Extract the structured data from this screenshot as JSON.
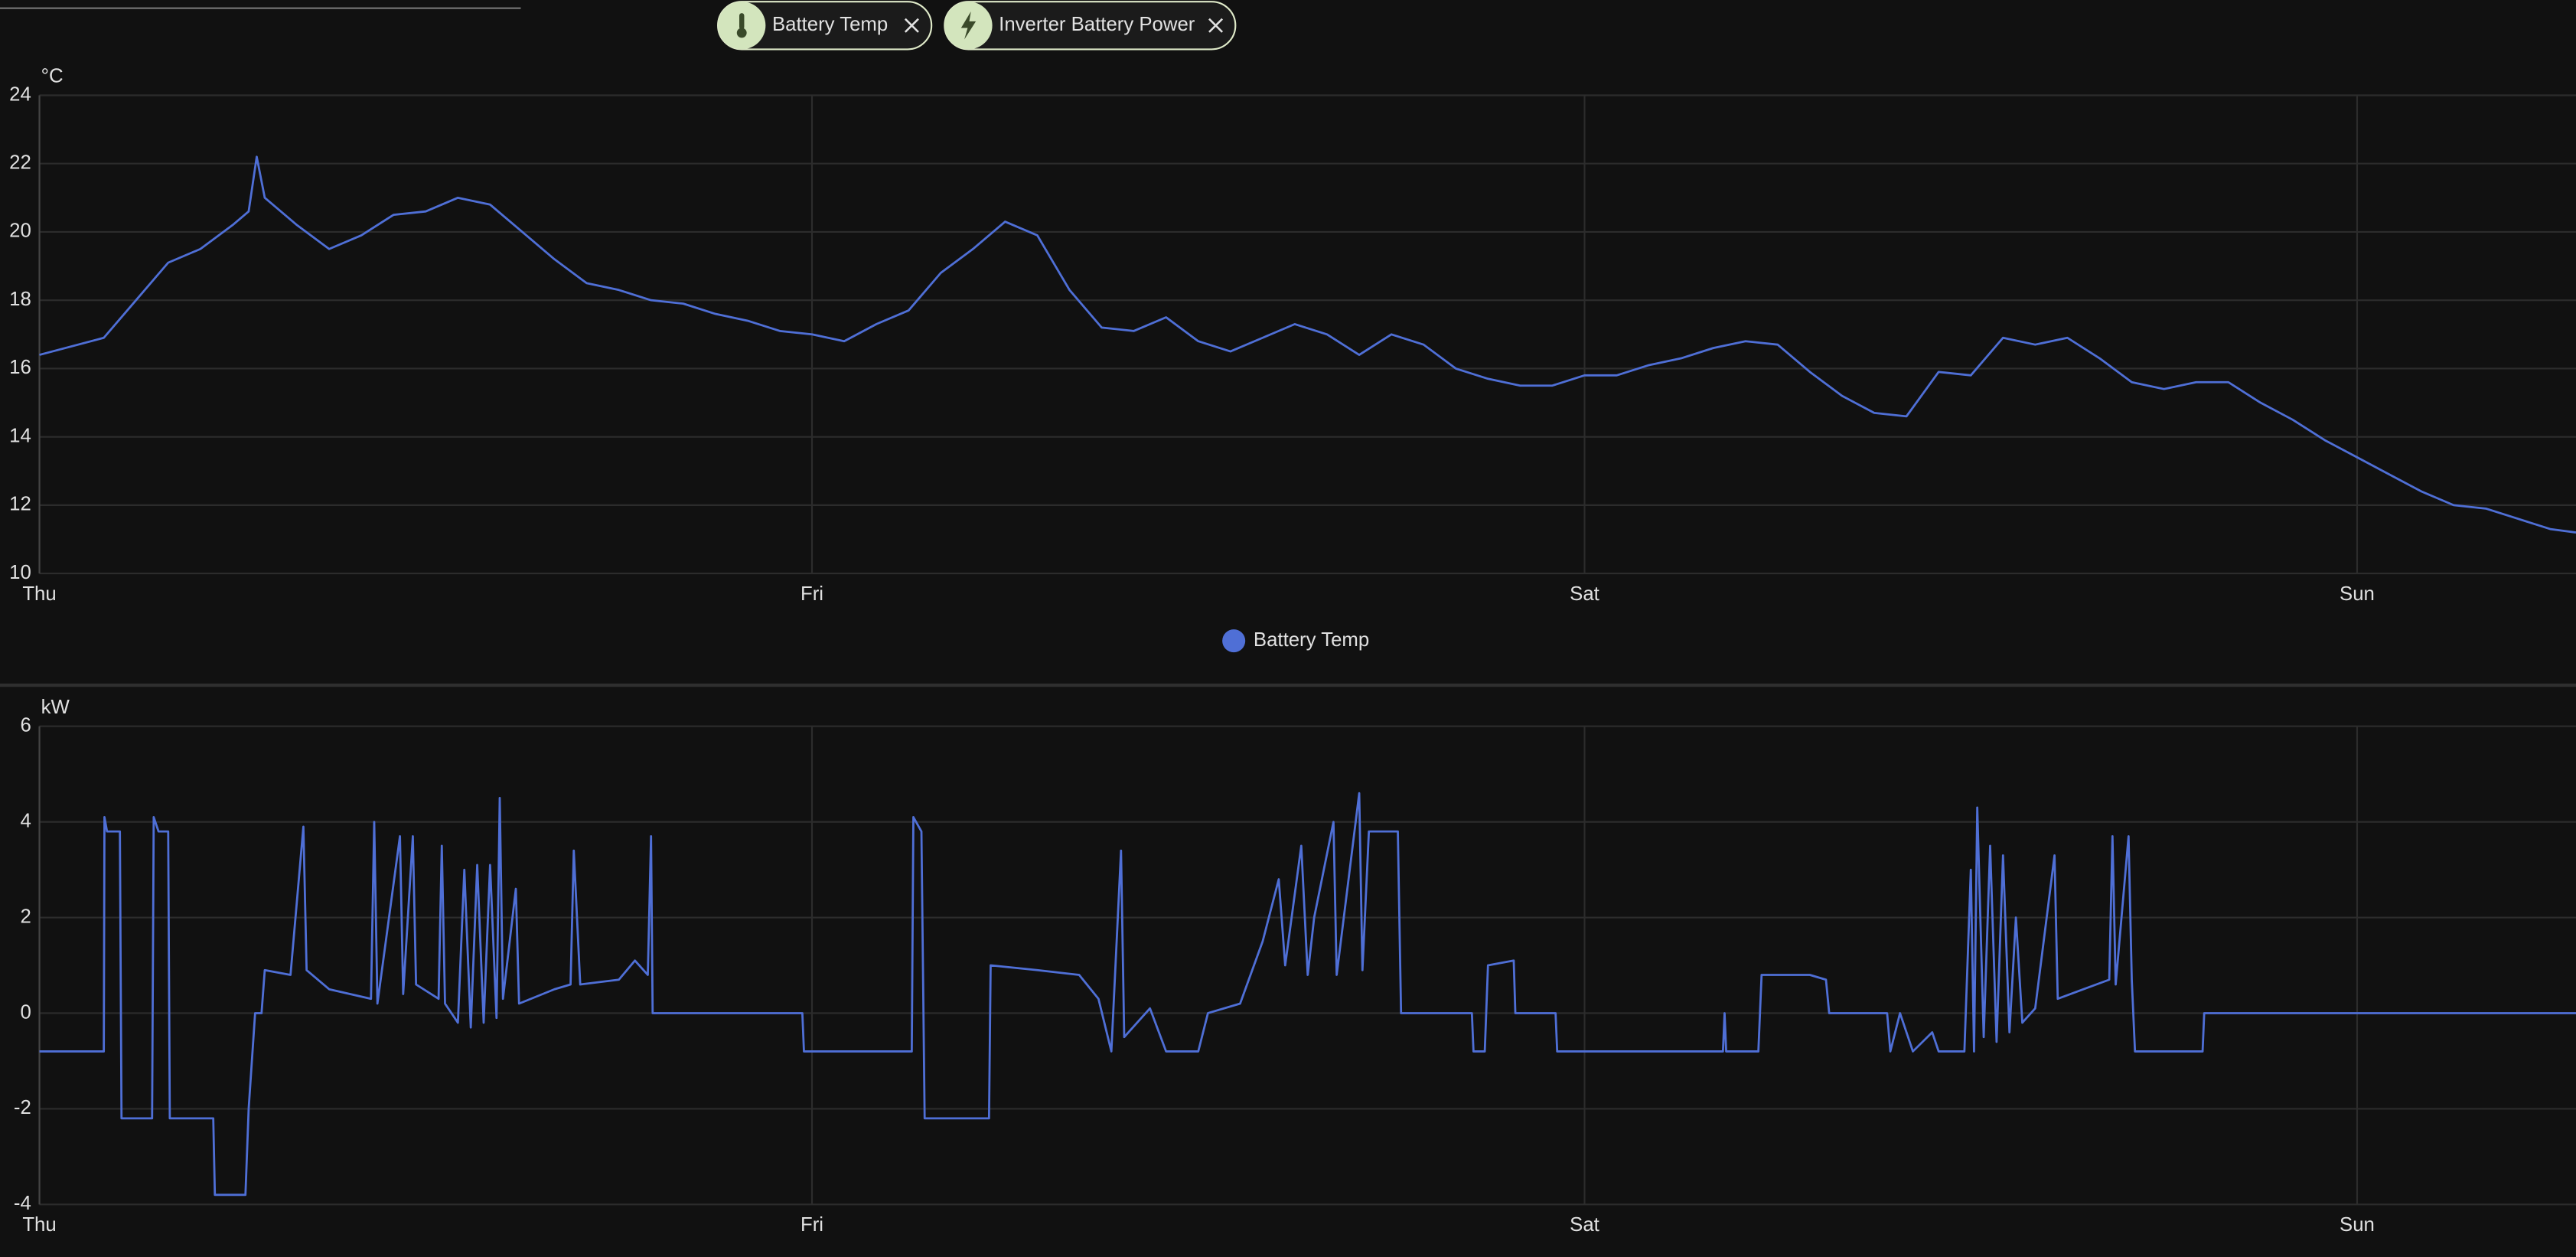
{
  "filter_chips": [
    "Battery Temp",
    "Inverter Battery Power"
  ],
  "chart_data": [
    {
      "type": "line",
      "y_unit": "°C",
      "grid": true,
      "legend": "bottom",
      "xlim": [
        0,
        78.8
      ],
      "xticks": [
        {
          "value": 0,
          "label": "Thu"
        },
        {
          "value": 24,
          "label": "Fri"
        },
        {
          "value": 48,
          "label": "Sat"
        },
        {
          "value": 72,
          "label": "Sun"
        }
      ],
      "ylim": [
        10,
        24
      ],
      "yticks": [
        10,
        12,
        14,
        16,
        18,
        20,
        22,
        24
      ],
      "x": [
        0,
        2,
        3,
        4,
        5,
        6,
        6.5,
        6.75,
        7,
        8,
        9,
        10,
        11,
        12,
        13,
        14,
        15,
        16,
        17,
        18,
        19,
        20,
        21,
        22,
        23,
        24,
        25,
        26,
        27,
        28,
        29,
        30,
        31,
        32,
        33,
        34,
        35,
        36,
        37,
        38,
        39,
        40,
        41,
        42,
        43,
        44,
        45,
        46,
        47,
        48,
        49,
        50,
        51,
        52,
        53,
        54,
        55,
        56,
        57,
        58,
        59,
        60,
        61,
        62,
        63,
        64,
        65,
        66,
        67,
        68,
        69,
        70,
        71,
        72,
        73,
        74,
        75,
        76,
        77,
        78,
        78.8
      ],
      "series": [
        {
          "name": "Battery Temp",
          "color": "#4f6fd6",
          "values": [
            16.4,
            16.9,
            18.0,
            19.1,
            19.5,
            20.2,
            20.6,
            22.2,
            21.0,
            20.2,
            19.5,
            19.9,
            20.5,
            20.6,
            21.0,
            20.8,
            20.0,
            19.2,
            18.5,
            18.3,
            18.0,
            17.9,
            17.6,
            17.4,
            17.1,
            17.0,
            16.8,
            17.3,
            17.7,
            18.8,
            19.5,
            20.3,
            19.9,
            18.3,
            17.2,
            17.1,
            17.5,
            16.8,
            16.5,
            16.9,
            17.3,
            17.0,
            16.4,
            17.0,
            16.7,
            16.0,
            15.7,
            15.5,
            15.5,
            15.8,
            15.8,
            16.1,
            16.3,
            16.6,
            16.8,
            16.7,
            15.9,
            15.2,
            14.7,
            14.6,
            15.9,
            15.8,
            16.9,
            16.7,
            16.9,
            16.3,
            15.6,
            15.4,
            15.6,
            15.6,
            15.0,
            14.5,
            13.9,
            13.4,
            12.9,
            12.4,
            12.0,
            11.9,
            11.6,
            11.3,
            11.2
          ]
        }
      ]
    },
    {
      "type": "line",
      "y_unit": "kW",
      "grid": true,
      "xlim": [
        0,
        78.8
      ],
      "xticks": [
        {
          "value": 0,
          "label": "Thu"
        },
        {
          "value": 24,
          "label": "Fri"
        },
        {
          "value": 48,
          "label": "Sat"
        },
        {
          "value": 72,
          "label": "Sun"
        }
      ],
      "ylim": [
        -4,
        6
      ],
      "yticks": [
        -4,
        -2,
        0,
        2,
        4,
        6
      ],
      "x": [
        0,
        2,
        2.02,
        2.1,
        2.5,
        2.55,
        3.5,
        3.55,
        3.7,
        4.0,
        4.05,
        5.4,
        5.45,
        6.4,
        6.5,
        6.7,
        6.9,
        7.0,
        7.8,
        8.2,
        8.3,
        9,
        10.3,
        10.4,
        10.5,
        11.2,
        11.3,
        11.6,
        11.7,
        12.4,
        12.5,
        12.6,
        13.0,
        13.2,
        13.4,
        13.6,
        13.8,
        14.0,
        14.2,
        14.3,
        14.4,
        14.8,
        14.9,
        16,
        16.5,
        16.6,
        16.8,
        18,
        18.5,
        18.9,
        19.0,
        19.05,
        23.7,
        23.75,
        27.1,
        27.15,
        27.4,
        27.5,
        29.5,
        29.55,
        31,
        32.3,
        32.9,
        33.3,
        33.6,
        33.7,
        34.5,
        35,
        36,
        36.3,
        37.3,
        38,
        38.5,
        38.7,
        39.2,
        39.4,
        39.6,
        40.2,
        40.3,
        41.0,
        41.1,
        41.3,
        42.2,
        42.3,
        44.5,
        44.55,
        44.9,
        45.0,
        45.8,
        45.85,
        47.1,
        47.15,
        52.3,
        52.35,
        52.4,
        53.4,
        53.5,
        55,
        55.5,
        55.6,
        57.4,
        57.5,
        57.8,
        58.2,
        58.8,
        59.0,
        59.8,
        60.0,
        60.1,
        60.2,
        60.4,
        60.6,
        60.8,
        61.0,
        61.2,
        61.4,
        61.6,
        62,
        62.6,
        62.7,
        63.5,
        64.3,
        64.4,
        64.5,
        64.9,
        65.0,
        65.1,
        67.2,
        67.25,
        78.8
      ],
      "series": [
        {
          "color": "#4f6fd6",
          "values": [
            -0.8,
            -0.8,
            4.1,
            3.8,
            3.8,
            -2.2,
            -2.2,
            4.1,
            3.8,
            3.8,
            -2.2,
            -2.2,
            -3.8,
            -3.8,
            -2.0,
            0,
            0,
            0.9,
            0.8,
            3.9,
            0.9,
            0.5,
            0.3,
            4.0,
            0.2,
            3.7,
            0.4,
            3.7,
            0.6,
            0.3,
            3.5,
            0.2,
            -0.2,
            3.0,
            -0.3,
            3.1,
            -0.2,
            3.1,
            -0.1,
            4.5,
            0.3,
            2.6,
            0.2,
            0.5,
            0.6,
            3.4,
            0.6,
            0.7,
            1.1,
            0.8,
            3.7,
            0,
            0,
            -0.8,
            -0.8,
            4.1,
            3.8,
            -2.2,
            -2.2,
            1.0,
            0.9,
            0.8,
            0.3,
            -0.8,
            3.4,
            -0.5,
            0.1,
            -0.8,
            -0.8,
            0,
            0.2,
            1.5,
            2.8,
            1.0,
            3.5,
            0.8,
            2.0,
            4.0,
            0.8,
            4.6,
            0.9,
            3.8,
            3.8,
            0,
            0,
            -0.8,
            -0.8,
            1.0,
            1.1,
            0,
            0,
            -0.8,
            -0.8,
            0,
            -0.8,
            -0.8,
            0.8,
            0.8,
            0.7,
            0,
            0,
            -0.8,
            0,
            -0.8,
            -0.4,
            -0.8,
            -0.8,
            3.0,
            -0.8,
            4.3,
            -0.5,
            3.5,
            -0.6,
            3.3,
            -0.4,
            2.0,
            -0.2,
            0.1,
            3.3,
            0.3,
            0.5,
            0.7,
            3.7,
            0.6,
            3.7,
            0.7,
            -0.8,
            -0.8,
            0,
            0
          ]
        }
      ]
    }
  ]
}
